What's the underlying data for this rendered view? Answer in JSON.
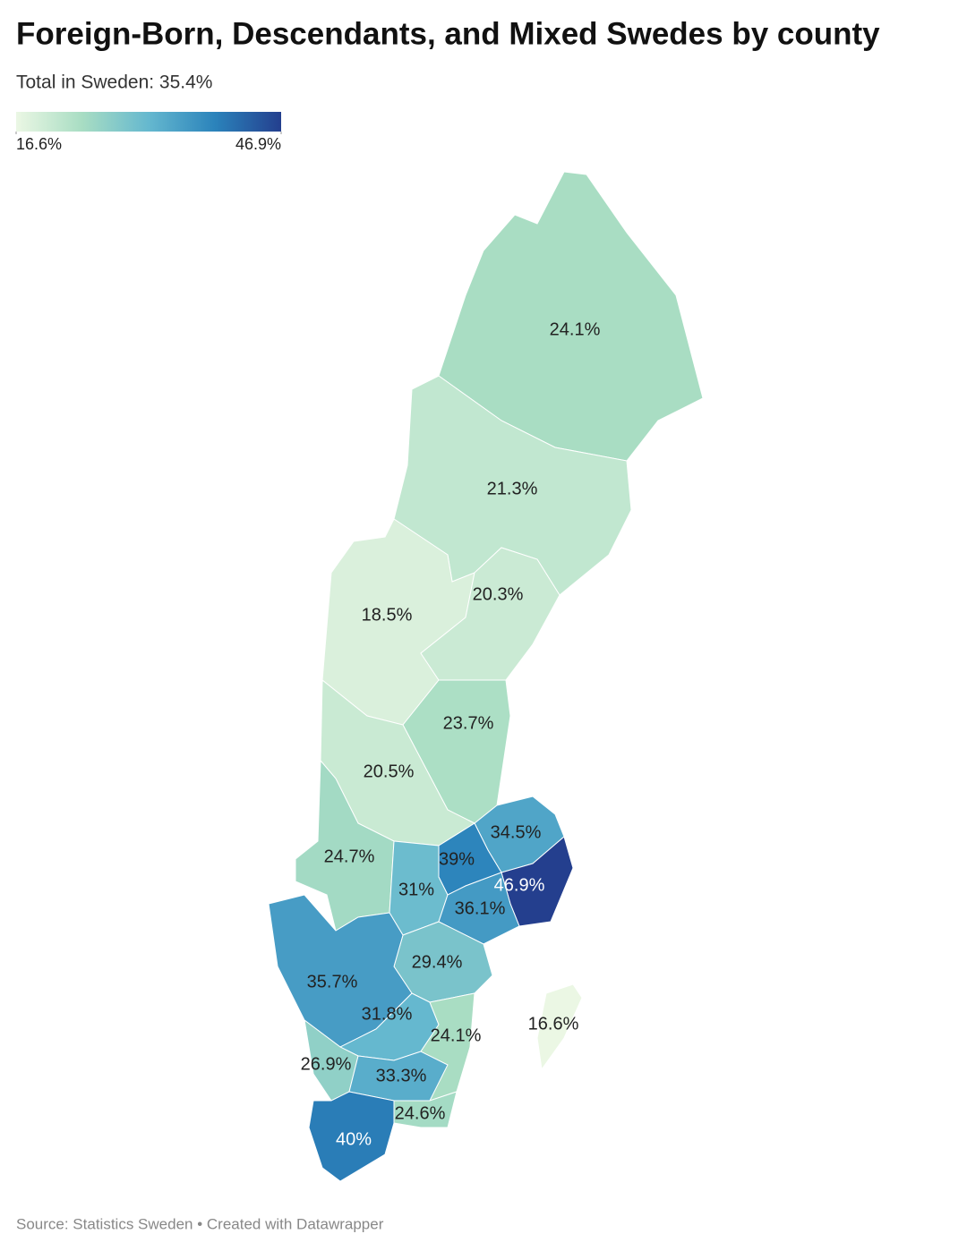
{
  "chart_data": {
    "type": "choropleth",
    "title": "Foreign-Born, Descendants, and Mixed Swedes by county",
    "subtitle": "Total in Sweden: 35.4%",
    "colors": [
      "#ebf7e4",
      "#a8ddc3",
      "#65b8cf",
      "#2b83bb",
      "#243f8e"
    ],
    "colorlim": [
      16.6,
      46.9
    ],
    "colorticks": [
      {
        "value": 16.6,
        "label": "16.6%"
      },
      {
        "value": 46.9,
        "label": "46.9%"
      }
    ],
    "values": [
      24.1,
      21.3,
      18.5,
      20.3,
      23.7,
      20.5,
      34.5,
      24.7,
      39,
      31,
      46.9,
      36.1,
      29.4,
      35.7,
      31.8,
      24.1,
      16.6,
      26.9,
      33.3,
      24.6,
      40
    ],
    "value_labels": [
      "24.1%",
      "21.3%",
      "18.5%",
      "20.3%",
      "23.7%",
      "20.5%",
      "34.5%",
      "24.7%",
      "39%",
      "31%",
      "46.9%",
      "36.1%",
      "29.4%",
      "35.7%",
      "31.8%",
      "24.1%",
      "16.6%",
      "26.9%",
      "33.3%",
      "24.6%",
      "40%"
    ],
    "source": "Source: Statistics Sweden • Created with Datawrapper"
  }
}
